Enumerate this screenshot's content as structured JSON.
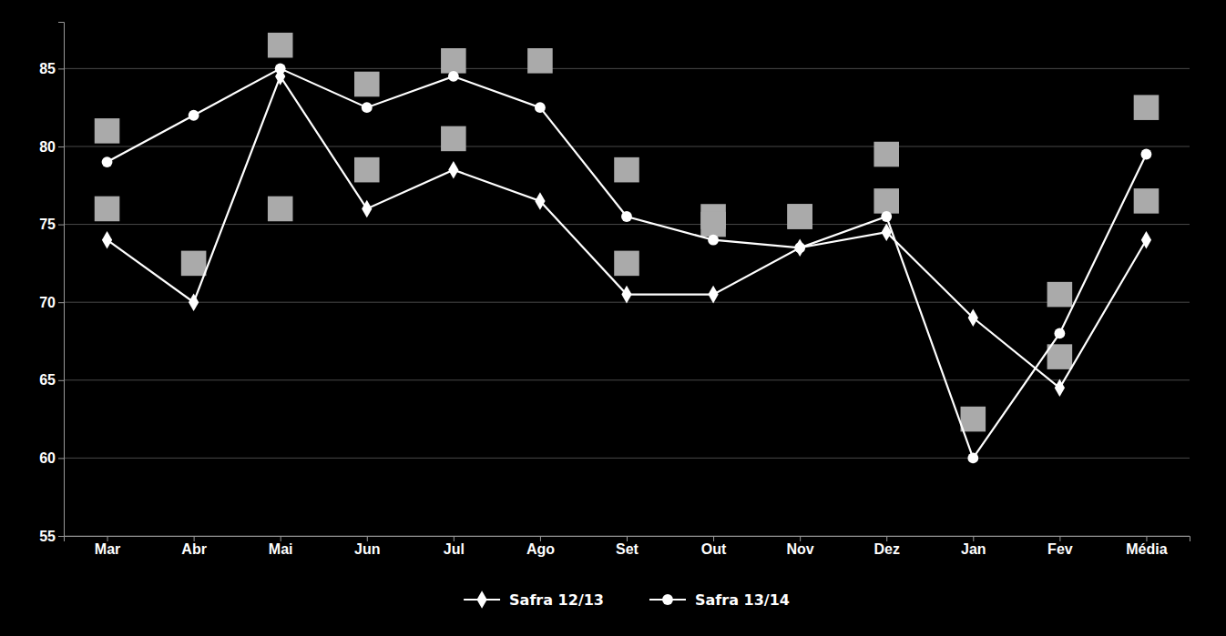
{
  "chart_data": {
    "type": "line",
    "categories": [
      "Mar",
      "Abr",
      "Mai",
      "Jun",
      "Jul",
      "Ago",
      "Set",
      "Out",
      "Nov",
      "Dez",
      "Jan",
      "Fev",
      "Média"
    ],
    "series": [
      {
        "name": "Safra 12/13",
        "color": "#ffffff",
        "marker": "diamond",
        "values": [
          74.0,
          70.0,
          84.5,
          76.0,
          78.5,
          76.5,
          70.5,
          70.5,
          73.5,
          74.5,
          69.0,
          64.5,
          74.0
        ]
      },
      {
        "name": "Safra 13/14",
        "color": "#ffffff",
        "marker": "circle",
        "values": [
          79.0,
          82.0,
          85.0,
          82.5,
          84.5,
          82.5,
          75.5,
          74.0,
          73.5,
          75.5,
          60.0,
          68.0,
          79.5
        ]
      },
      {
        "type": "scatter",
        "color": "#aaaaaa",
        "marker": "square",
        "values": [
          81.0,
          null,
          86.5,
          84.0,
          85.5,
          85.5,
          78.5,
          75.5,
          75.5,
          79.5,
          62.5,
          70.5,
          82.5
        ]
      },
      {
        "type": "scatter",
        "color": "#aaaaaa",
        "marker": "square",
        "values": [
          76.0,
          72.5,
          76.0,
          78.5,
          80.5,
          null,
          72.5,
          75.0,
          75.5,
          76.5,
          null,
          66.5,
          76.5
        ]
      }
    ],
    "ylim": [
      55,
      88
    ],
    "yticks": [
      55,
      60,
      65,
      70,
      75,
      80,
      85
    ],
    "grid": true,
    "legend": "bottom"
  }
}
